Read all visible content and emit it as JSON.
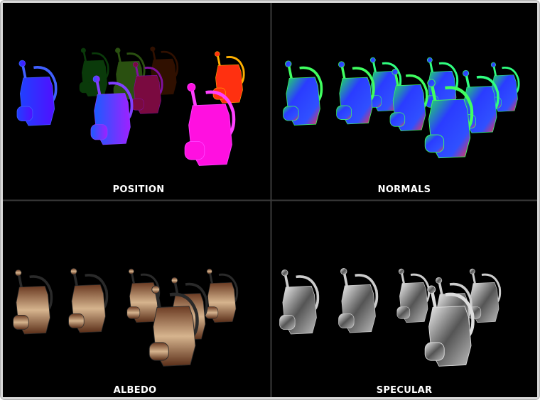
{
  "panels": [
    {
      "label": "POSITION"
    },
    {
      "label": "NORMALS"
    },
    {
      "label": "ALBEDO"
    },
    {
      "label": "SPECULAR"
    }
  ]
}
